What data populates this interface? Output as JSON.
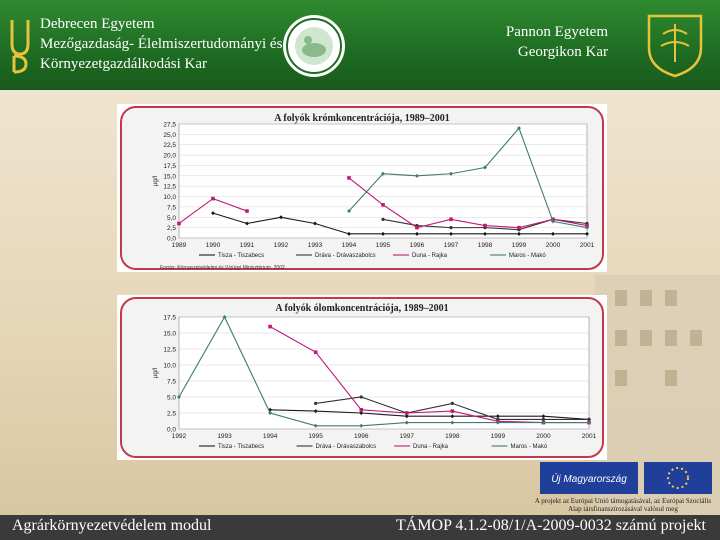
{
  "header": {
    "left_lines": [
      "Debrecen Egyetem",
      "Mezőgazdaság- Élelmiszertudományi és",
      "Környezetgazdálkodási Kar"
    ],
    "right_lines": [
      "Pannon Egyetem",
      "Georgikon Kar"
    ]
  },
  "footer": {
    "left": "Agrárkörnyezetvédelem modul",
    "right": "TÁMOP 4.1.2-08/1/A-2009-0032 számú projekt"
  },
  "eu": {
    "logo_text": "Új Magyarország",
    "note": "A projekt az Európai Unió támogatásával, az Európai Szociális Alap társfinanszírozásával valósul meg"
  },
  "source_note": "Forrás: Környezetvédelmi és Vízügyi Minisztérium, 2002",
  "colors": {
    "header_green": "#1e6b22",
    "frame_red": "#c23a4a",
    "footer_gray": "#3a3a3a"
  },
  "chart_data": [
    {
      "type": "line",
      "title": "A folyók krómkoncentrációja, 1989–2001",
      "ylabel": "µg/l",
      "ylim": [
        0,
        27.5
      ],
      "yticks": [
        "0,0",
        "2,5",
        "5,0",
        "7,5",
        "10,0",
        "12,5",
        "15,0",
        "17,5",
        "20,0",
        "22,5",
        "25,0",
        "27,5"
      ],
      "categories": [
        "1989",
        "1990",
        "1991",
        "1992",
        "1993",
        "1994",
        "1995",
        "1996",
        "1997",
        "1998",
        "1999",
        "2000",
        "2001"
      ],
      "series": [
        {
          "name": "Tisza - Tiszabecs",
          "color": "#1a1a1a",
          "values": [
            null,
            6,
            3.5,
            5,
            3.5,
            1,
            1,
            1,
            1,
            1,
            1,
            1,
            1
          ]
        },
        {
          "name": "Dráva - Drávaszabolcs",
          "color": "#333333",
          "values": [
            null,
            null,
            null,
            null,
            null,
            null,
            4.5,
            3,
            2.5,
            2.5,
            2,
            4.5,
            3.5
          ]
        },
        {
          "name": "Duna - Rajka",
          "color": "#c0197a",
          "values": [
            3.5,
            9.5,
            6.5,
            null,
            null,
            14.5,
            8,
            2.5,
            4.5,
            3,
            2.5,
            4.5,
            3
          ]
        },
        {
          "name": "Maros - Makó",
          "color": "#3e7b74",
          "values": [
            null,
            null,
            null,
            null,
            null,
            6.5,
            15.5,
            15,
            15.5,
            17,
            26.5,
            4,
            2.5
          ]
        }
      ]
    },
    {
      "type": "line",
      "title": "A folyók ólomkoncentrációja, 1989–2001",
      "ylabel": "µg/l",
      "ylim": [
        0,
        17.5
      ],
      "yticks": [
        "0,0",
        "2,5",
        "5,0",
        "7,5",
        "10,0",
        "12,5",
        "15,0",
        "17,5"
      ],
      "categories": [
        "1992",
        "1993",
        "1994",
        "1995",
        "1996",
        "1997",
        "1998",
        "1999",
        "2000",
        "2001"
      ],
      "series": [
        {
          "name": "Tisza - Tiszabecs",
          "color": "#1a1a1a",
          "values": [
            null,
            null,
            3,
            2.8,
            2.5,
            2,
            2,
            2,
            2,
            1.5
          ]
        },
        {
          "name": "Dráva - Drávaszabolcs",
          "color": "#333333",
          "values": [
            null,
            null,
            null,
            4,
            5,
            2.5,
            4,
            1.5,
            1.5,
            1.5
          ]
        },
        {
          "name": "Duna - Rajka",
          "color": "#c0197a",
          "values": [
            null,
            null,
            16,
            12,
            3,
            2.5,
            2.8,
            1.2,
            1,
            1
          ]
        },
        {
          "name": "Maros - Makó",
          "color": "#3e7b74",
          "values": [
            5,
            17.5,
            2.5,
            0.5,
            0.5,
            1,
            1,
            1,
            1,
            1
          ]
        }
      ]
    }
  ]
}
